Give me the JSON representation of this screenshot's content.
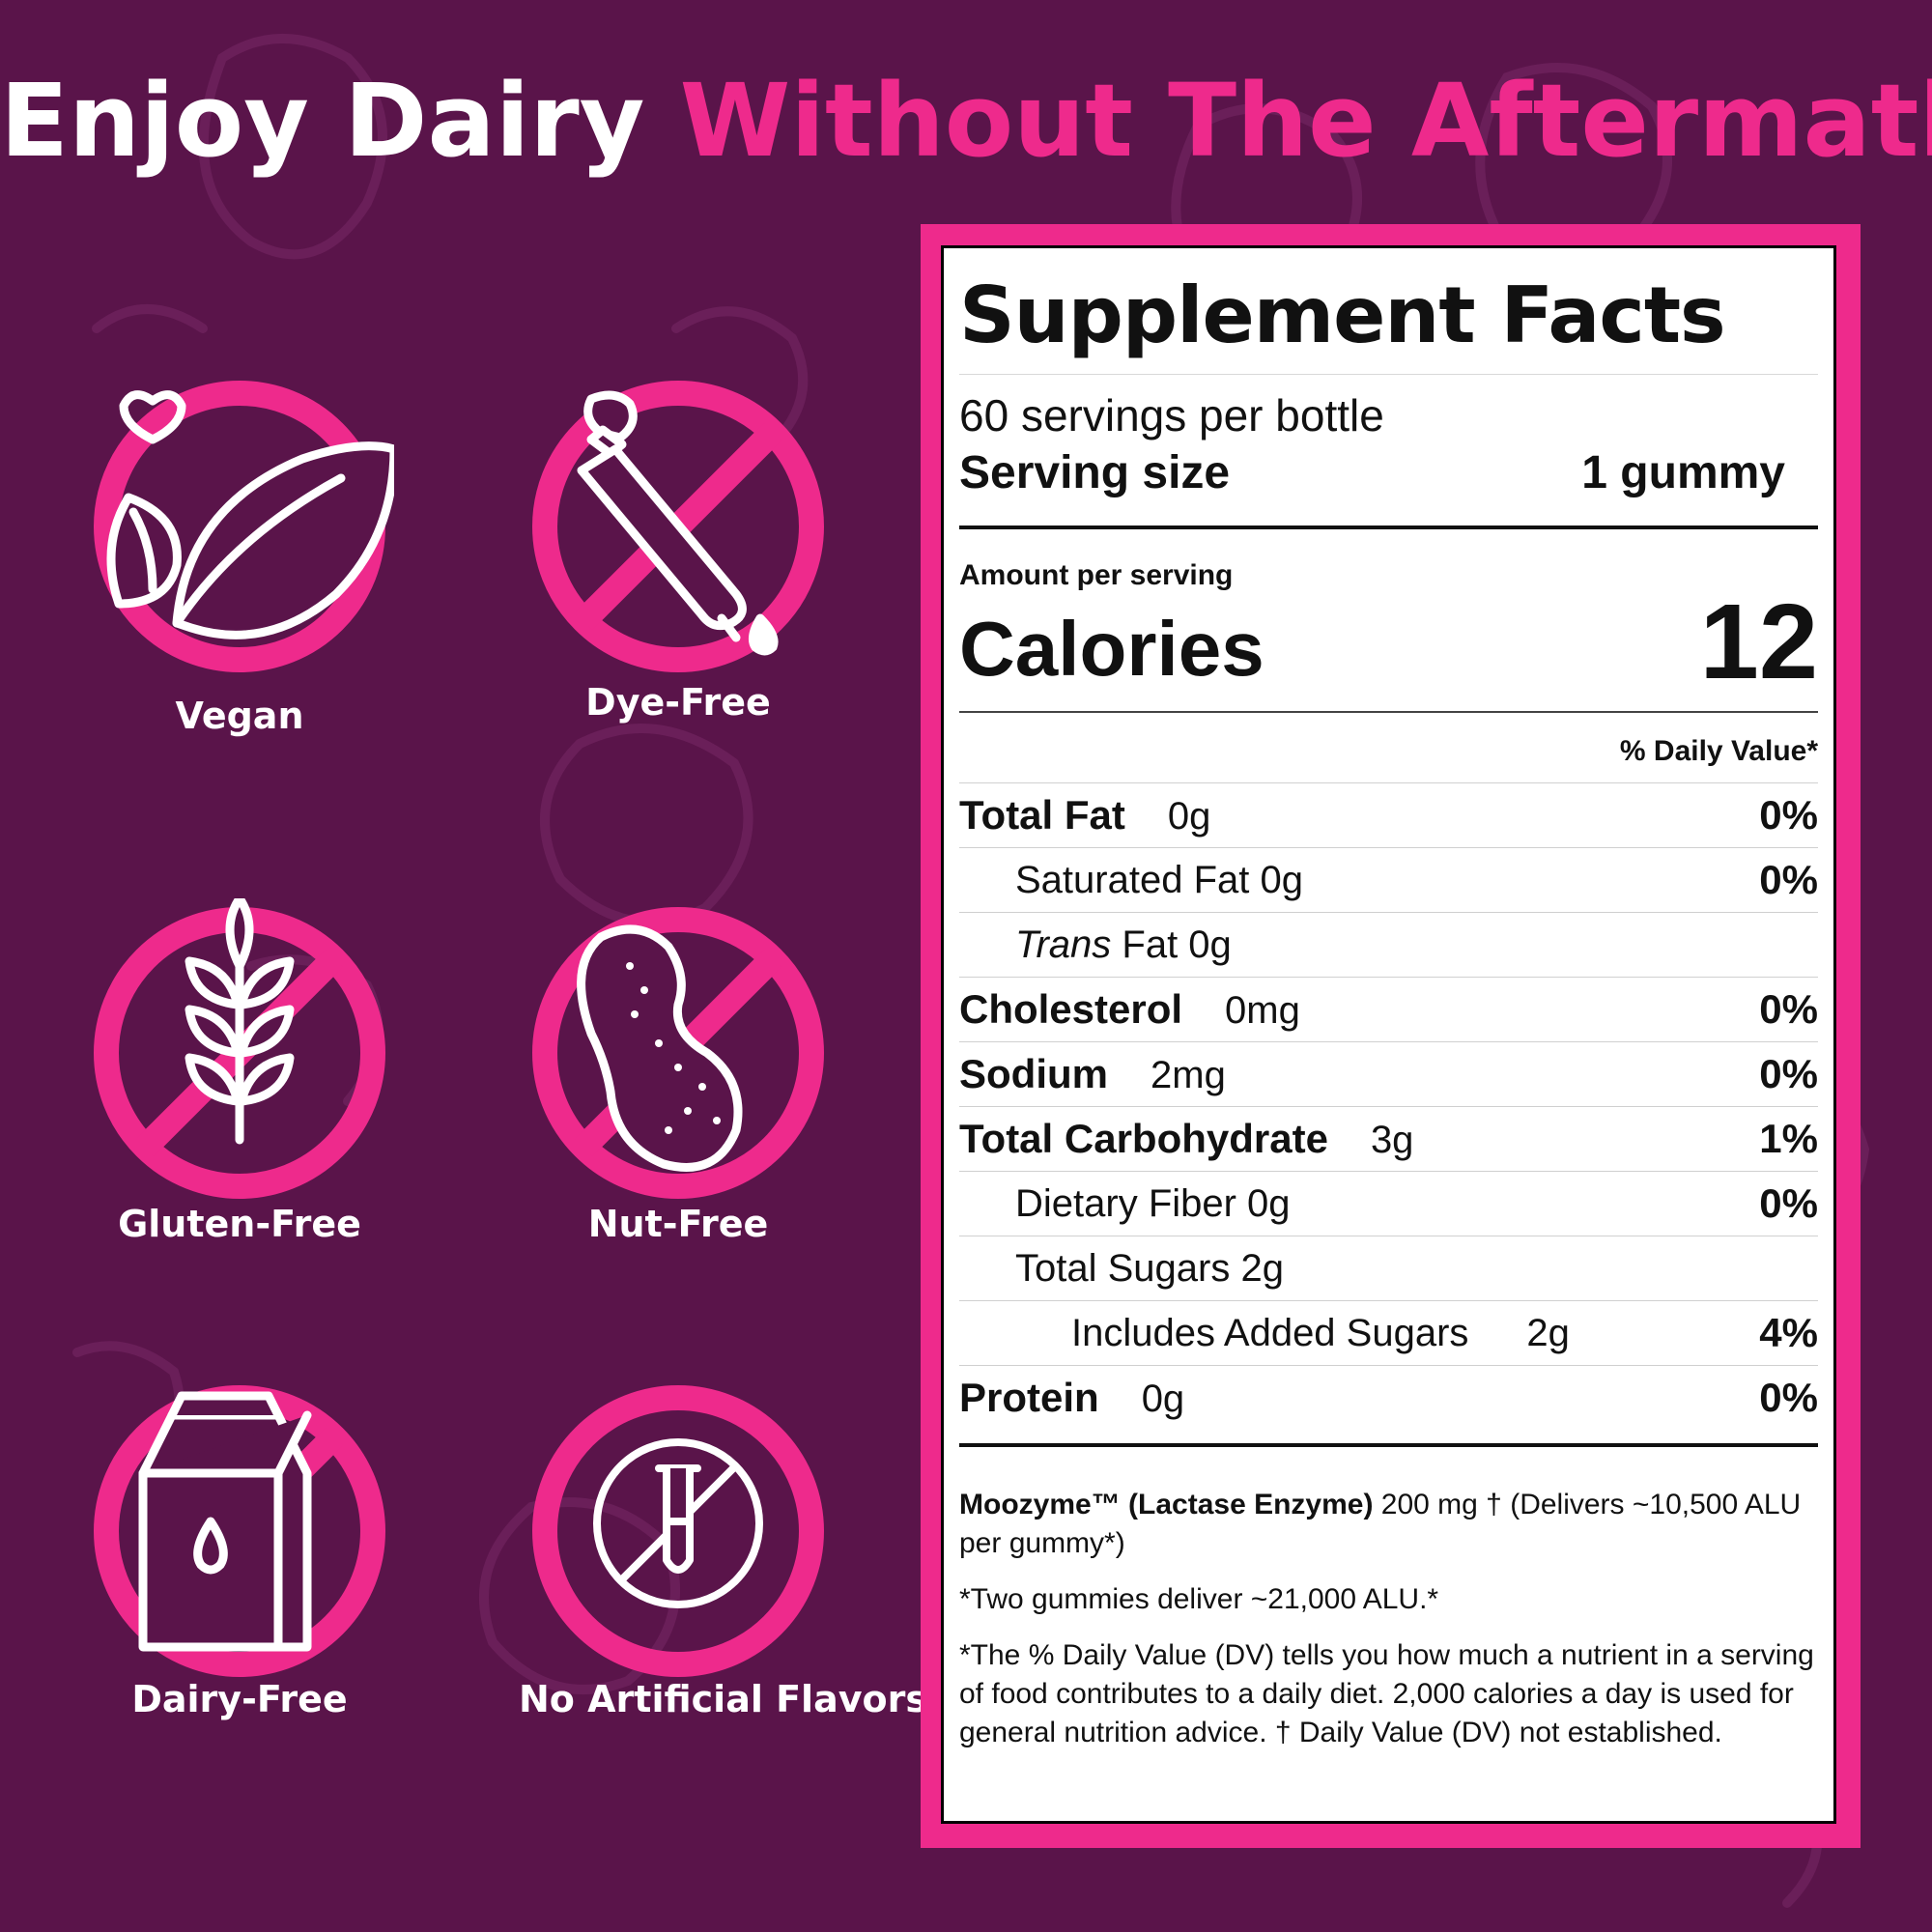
{
  "headline": {
    "part1": "Enjoy Dairy",
    "part2": "Without The Aftermath"
  },
  "colors": {
    "background": "#5a144a",
    "accent_pink": "#ee2a8c",
    "white": "#ffffff"
  },
  "badges": [
    {
      "label": "Vegan",
      "icon": "leaf-heart-icon"
    },
    {
      "label": "Dye-Free",
      "icon": "dropper-icon"
    },
    {
      "label": "Gluten-Free",
      "icon": "wheat-icon"
    },
    {
      "label": "Nut-Free",
      "icon": "peanut-icon"
    },
    {
      "label": "Dairy-Free",
      "icon": "milk-carton-icon"
    },
    {
      "label": "No Artificial Flavors",
      "icon": "test-tube-icon"
    }
  ],
  "facts": {
    "title": "Supplement Facts",
    "servings_per_container": "60 servings per bottle",
    "serving_size_label": "Serving size",
    "serving_size_value": "1 gummy",
    "amount_per_serving": "Amount per serving",
    "calories_label": "Calories",
    "calories_value": "12",
    "dv_header": "% Daily Value*",
    "rows": [
      {
        "name": "Total Fat",
        "amount": "0g",
        "dv": "0%"
      },
      {
        "name": "Saturated Fat 0g",
        "amount": "",
        "dv": "0%"
      },
      {
        "name_italic": "Trans",
        "name": " Fat 0g",
        "amount": "",
        "dv": ""
      },
      {
        "name": "Cholesterol",
        "amount": "0mg",
        "dv": "0%"
      },
      {
        "name": "Sodium",
        "amount": "2mg",
        "dv": "0%"
      },
      {
        "name": "Total Carbohydrate",
        "amount": "3g",
        "dv": "1%"
      },
      {
        "name": "Dietary Fiber 0g",
        "amount": "",
        "dv": "0%"
      },
      {
        "name": "Total Sugars 2g",
        "amount": "",
        "dv": ""
      },
      {
        "name": "Includes Added Sugars",
        "amount": "2g",
        "dv": "4%"
      },
      {
        "name": "Protein",
        "amount": "0g",
        "dv": "0%"
      }
    ],
    "enzyme_name": "Moozyme™ (Lactase Enzyme)",
    "enzyme_rest": " 200 mg † (Delivers ~10,500 ALU per gummy*)",
    "note_two_gummies": "*Two gummies deliver ~21,000 ALU.*",
    "note_dv": "*The % Daily Value (DV) tells you how much a nutrient in a serving of food contributes to a daily diet. 2,000 calories a day is used for general nutrition advice. † Daily Value (DV) not established."
  }
}
